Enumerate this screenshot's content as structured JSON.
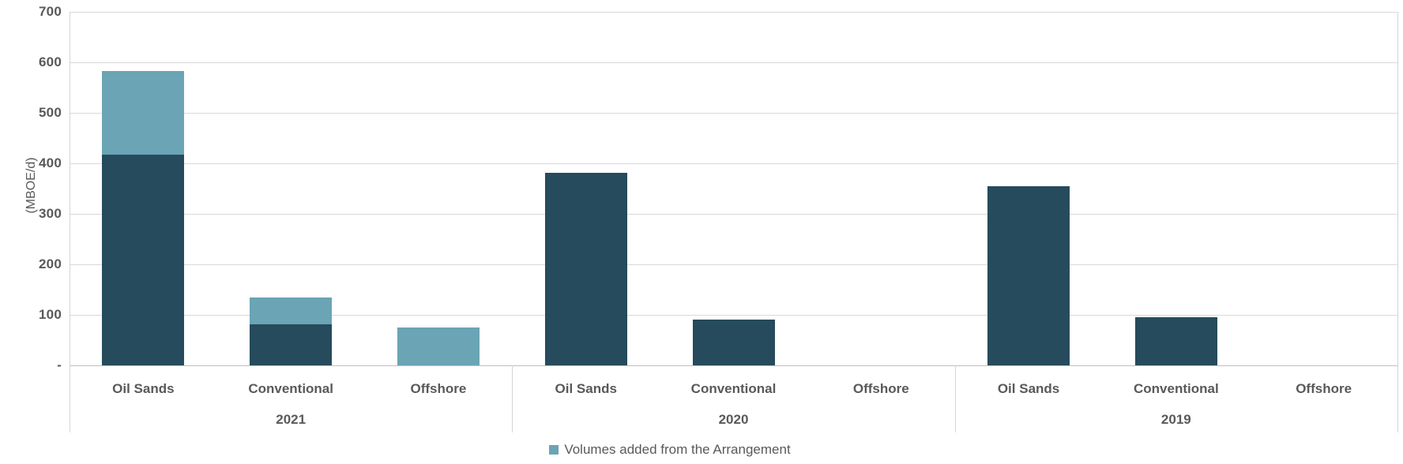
{
  "chart_data": {
    "type": "bar",
    "stacked": true,
    "title": "",
    "ylabel": "(MBOE/d)",
    "xlabel": "",
    "ylim": [
      0,
      700
    ],
    "y_tick_step": 100,
    "y_tick_labels_top_to_bottom": [
      "700",
      "600",
      "500",
      "400",
      "300",
      "200",
      "100",
      "-"
    ],
    "grid": true,
    "categories": [
      "Oil Sands",
      "Conventional",
      "Offshore"
    ],
    "groups": [
      "2021",
      "2020",
      "2019"
    ],
    "series": [
      {
        "id": "base",
        "name": "",
        "color": "#254B5C",
        "show_in_legend": false,
        "values": {
          "2021": [
            417,
            82,
            0
          ],
          "2020": [
            381,
            90,
            0
          ],
          "2019": [
            355,
            96,
            0
          ]
        }
      },
      {
        "id": "added",
        "name": "Volumes added from the Arrangement",
        "color": "#6AA4B5",
        "show_in_legend": true,
        "values": {
          "2021": [
            166,
            52,
            75
          ],
          "2020": [
            0,
            0,
            0
          ],
          "2019": [
            0,
            0,
            0
          ]
        }
      }
    ],
    "legend": {
      "position": "bottom",
      "entries": [
        {
          "label": "Volumes added from the Arrangement",
          "color": "#6AA4B5"
        }
      ]
    }
  },
  "colors": {
    "background": "#ffffff",
    "gridline": "#d9d9d9",
    "axis_line": "#bfbfbf",
    "text": "#595959",
    "bar_dark": "#254B5C",
    "bar_light": "#6AA4B5"
  }
}
